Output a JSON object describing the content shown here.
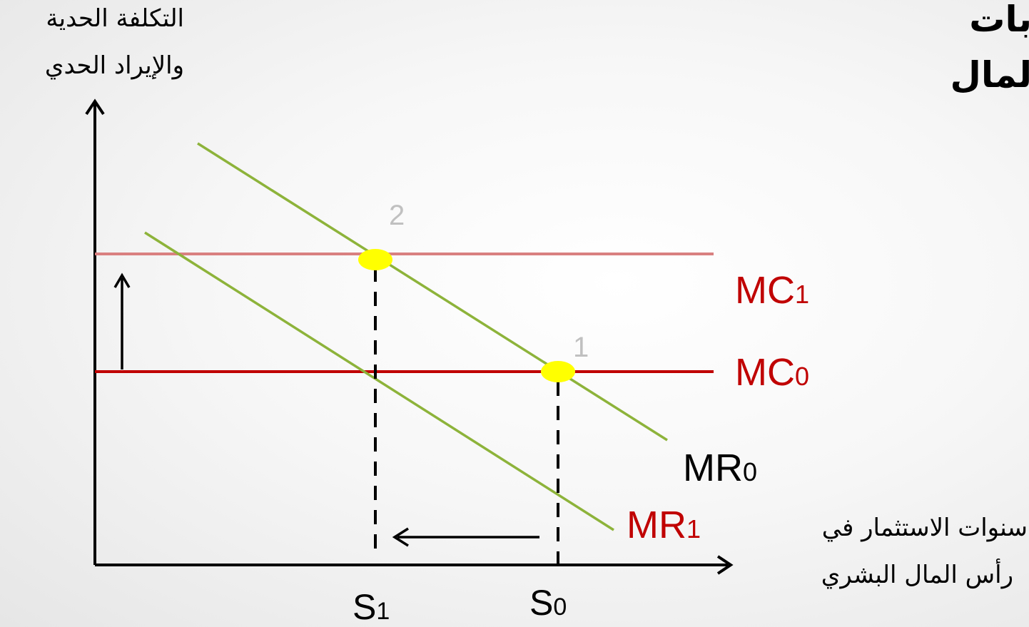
{
  "slide": {
    "title_lines": [
      "بات",
      "لمال"
    ]
  },
  "diagram": {
    "y_axis_label_lines": [
      "التكلفة الحدية",
      "والإيراد الحدي"
    ],
    "x_axis_label_lines": [
      "سنوات الاستثمار في",
      "رأس المال البشري"
    ],
    "curves": {
      "MC1": {
        "main": "MC",
        "sub": "1",
        "color": "#c00000"
      },
      "MC0": {
        "main": "MC",
        "sub": "0",
        "color": "#c00000"
      },
      "MR0": {
        "main": "MR",
        "sub": "0",
        "color": "#000000"
      },
      "MR1": {
        "main": "MR",
        "sub": "1",
        "color": "#c00000"
      }
    },
    "points": [
      "2",
      "1"
    ],
    "x_ticks": {
      "S1": {
        "main": "S",
        "sub": "1"
      },
      "S0": {
        "main": "S",
        "sub": "0"
      }
    },
    "colors": {
      "axis": "#000000",
      "mc0_line": "#c00000",
      "mc1_line": "#d98080",
      "mr_line": "#8db33a",
      "equilibrium_marker": "#ffff00",
      "point_label": "#c0c0c0"
    }
  }
}
